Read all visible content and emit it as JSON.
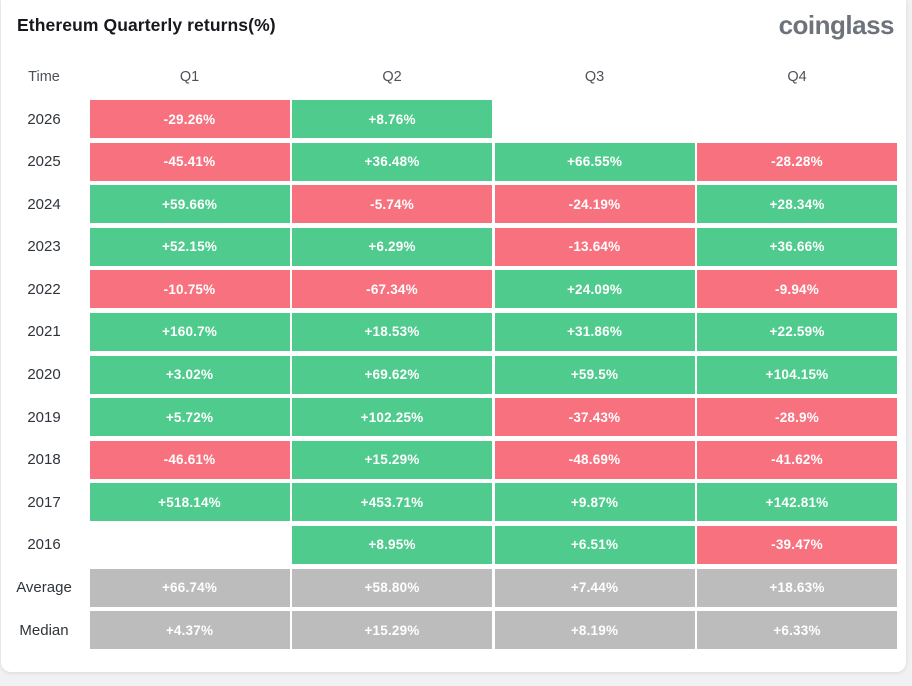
{
  "page": {
    "title": "Ethereum Quarterly returns(%)",
    "brand": "coinglass"
  },
  "colors": {
    "green": "#4ECB8D",
    "red": "#F7727E",
    "gray": "#BCBCBC",
    "title_text": "#16181d",
    "brand_text": "#6e737b",
    "header_text": "#4d5158",
    "label_text": "#2f343b",
    "card_bg": "#ffffff",
    "page_bg": "#f1f1f3"
  },
  "chart_data": {
    "type": "table",
    "title": "Ethereum Quarterly returns(%)",
    "columns": [
      "Time",
      "Q1",
      "Q2",
      "Q3",
      "Q4"
    ],
    "legend": {
      "green": "positive quarterly return",
      "red": "negative quarterly return",
      "gray": "summary rows (Average / Median)",
      "none": "no data"
    },
    "rows": [
      {
        "label": "2026",
        "cells": [
          {
            "v": "-29.26%",
            "c": "red"
          },
          {
            "v": "+8.76%",
            "c": "green"
          },
          {
            "v": "",
            "c": "none"
          },
          {
            "v": "",
            "c": "none"
          }
        ]
      },
      {
        "label": "2025",
        "cells": [
          {
            "v": "-45.41%",
            "c": "red"
          },
          {
            "v": "+36.48%",
            "c": "green"
          },
          {
            "v": "+66.55%",
            "c": "green"
          },
          {
            "v": "-28.28%",
            "c": "red"
          }
        ]
      },
      {
        "label": "2024",
        "cells": [
          {
            "v": "+59.66%",
            "c": "green"
          },
          {
            "v": "-5.74%",
            "c": "red"
          },
          {
            "v": "-24.19%",
            "c": "red"
          },
          {
            "v": "+28.34%",
            "c": "green"
          }
        ]
      },
      {
        "label": "2023",
        "cells": [
          {
            "v": "+52.15%",
            "c": "green"
          },
          {
            "v": "+6.29%",
            "c": "green"
          },
          {
            "v": "-13.64%",
            "c": "red"
          },
          {
            "v": "+36.66%",
            "c": "green"
          }
        ]
      },
      {
        "label": "2022",
        "cells": [
          {
            "v": "-10.75%",
            "c": "red"
          },
          {
            "v": "-67.34%",
            "c": "red"
          },
          {
            "v": "+24.09%",
            "c": "green"
          },
          {
            "v": "-9.94%",
            "c": "red"
          }
        ]
      },
      {
        "label": "2021",
        "cells": [
          {
            "v": "+160.7%",
            "c": "green"
          },
          {
            "v": "+18.53%",
            "c": "green"
          },
          {
            "v": "+31.86%",
            "c": "green"
          },
          {
            "v": "+22.59%",
            "c": "green"
          }
        ]
      },
      {
        "label": "2020",
        "cells": [
          {
            "v": "+3.02%",
            "c": "green"
          },
          {
            "v": "+69.62%",
            "c": "green"
          },
          {
            "v": "+59.5%",
            "c": "green"
          },
          {
            "v": "+104.15%",
            "c": "green"
          }
        ]
      },
      {
        "label": "2019",
        "cells": [
          {
            "v": "+5.72%",
            "c": "green"
          },
          {
            "v": "+102.25%",
            "c": "green"
          },
          {
            "v": "-37.43%",
            "c": "red"
          },
          {
            "v": "-28.9%",
            "c": "red"
          }
        ]
      },
      {
        "label": "2018",
        "cells": [
          {
            "v": "-46.61%",
            "c": "red"
          },
          {
            "v": "+15.29%",
            "c": "green"
          },
          {
            "v": "-48.69%",
            "c": "red"
          },
          {
            "v": "-41.62%",
            "c": "red"
          }
        ]
      },
      {
        "label": "2017",
        "cells": [
          {
            "v": "+518.14%",
            "c": "green"
          },
          {
            "v": "+453.71%",
            "c": "green"
          },
          {
            "v": "+9.87%",
            "c": "green"
          },
          {
            "v": "+142.81%",
            "c": "green"
          }
        ]
      },
      {
        "label": "2016",
        "cells": [
          {
            "v": "",
            "c": "none"
          },
          {
            "v": "+8.95%",
            "c": "green"
          },
          {
            "v": "+6.51%",
            "c": "green"
          },
          {
            "v": "-39.47%",
            "c": "red"
          }
        ]
      },
      {
        "label": "Average",
        "cells": [
          {
            "v": "+66.74%",
            "c": "gray"
          },
          {
            "v": "+58.80%",
            "c": "gray"
          },
          {
            "v": "+7.44%",
            "c": "gray"
          },
          {
            "v": "+18.63%",
            "c": "gray"
          }
        ]
      },
      {
        "label": "Median",
        "cells": [
          {
            "v": "+4.37%",
            "c": "gray"
          },
          {
            "v": "+15.29%",
            "c": "gray"
          },
          {
            "v": "+8.19%",
            "c": "gray"
          },
          {
            "v": "+6.33%",
            "c": "gray"
          }
        ]
      }
    ]
  }
}
